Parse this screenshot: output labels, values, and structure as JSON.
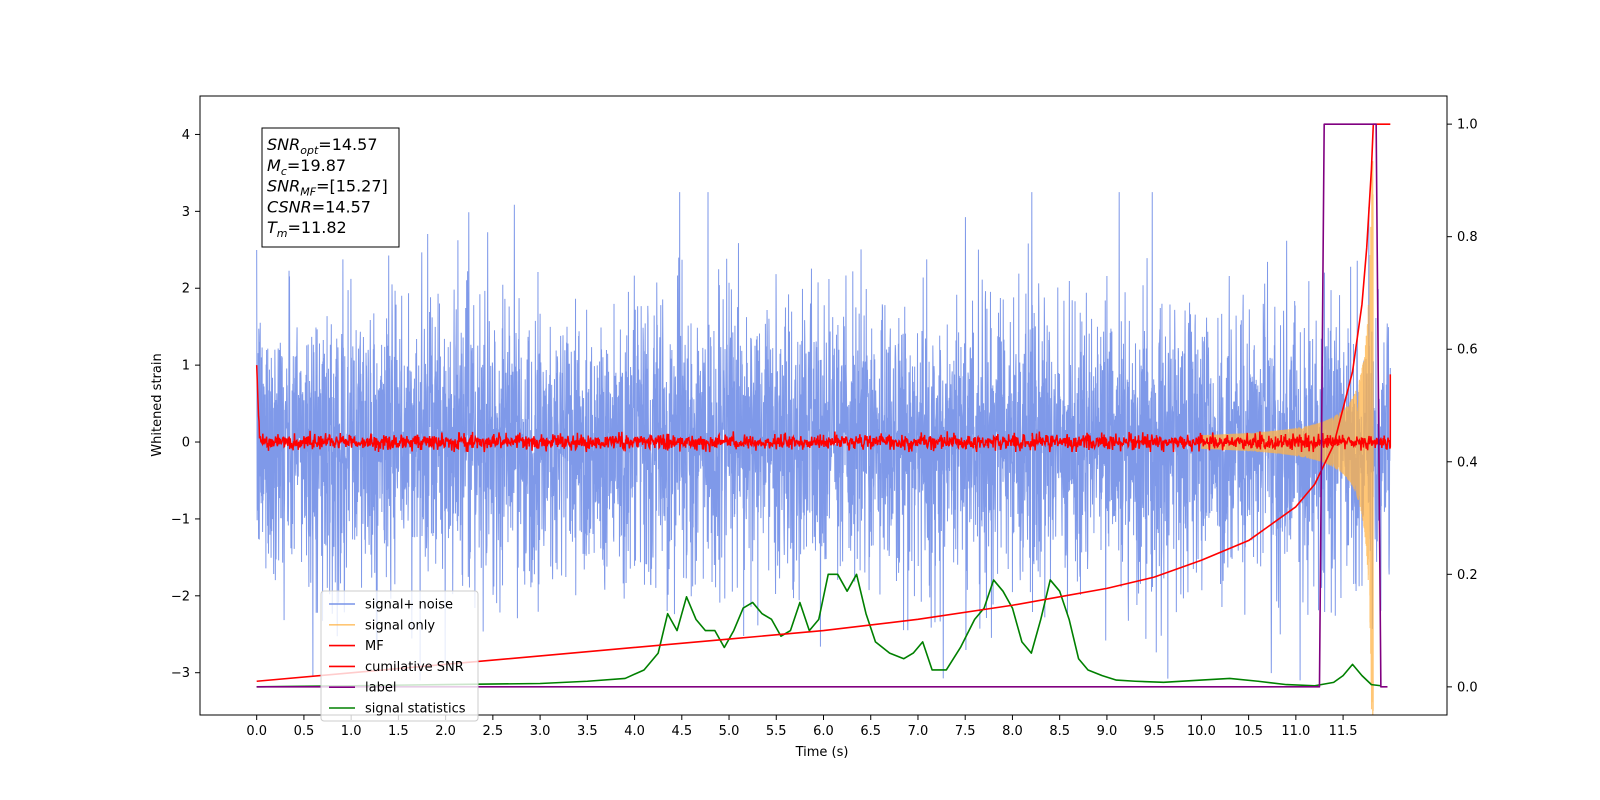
{
  "chart_data": {
    "type": "line",
    "title": "",
    "xlabel": "Time (s)",
    "ylabel": "Whitened strain",
    "xlim": [
      -0.6,
      12.6
    ],
    "ylim": [
      -3.55,
      4.5
    ],
    "y2lim": [
      -0.05,
      1.05
    ],
    "xticks": [
      0.0,
      0.5,
      1.0,
      1.5,
      2.0,
      2.5,
      3.0,
      3.5,
      4.0,
      4.5,
      5.0,
      5.5,
      6.0,
      6.5,
      7.0,
      7.5,
      8.0,
      8.5,
      9.0,
      9.5,
      10.0,
      10.5,
      11.0,
      11.5
    ],
    "xtick_labels": [
      "0.0",
      "0.5",
      "1.0",
      "1.5",
      "2.0",
      "2.5",
      "3.0",
      "3.5",
      "4.0",
      "4.5",
      "5.0",
      "5.5",
      "6.0",
      "6.5",
      "7.0",
      "7.5",
      "8.0",
      "8.5",
      "9.0",
      "9.5",
      "10.0",
      "10.5",
      "11.0",
      "11.5"
    ],
    "yticks": [
      -3,
      -2,
      -1,
      0,
      1,
      2,
      3,
      4
    ],
    "ytick_labels": [
      "−3",
      "−2",
      "−1",
      "0",
      "1",
      "2",
      "3",
      "4"
    ],
    "y2ticks": [
      0.0,
      0.2,
      0.4,
      0.6,
      0.8,
      1.0
    ],
    "y2tick_labels": [
      "0.0",
      "0.2",
      "0.4",
      "0.6",
      "0.8",
      "1.0"
    ],
    "grid": false,
    "legend_position": "lower-left",
    "annotation": {
      "lines": [
        {
          "base": "SNR",
          "sub": "opt",
          "value": "=14.57"
        },
        {
          "base": "M",
          "sub": "c",
          "value": "=19.87"
        },
        {
          "base": "SNR",
          "sub": "MF",
          "value": "=[15.27]"
        },
        {
          "base": "CSNR",
          "sub": "",
          "value": "=14.57"
        },
        {
          "base": "T",
          "sub": "m",
          "value": "=11.82"
        }
      ]
    },
    "series": [
      {
        "name": "signal+ noise",
        "color": "#7894e8",
        "axis": "left",
        "kind": "noise",
        "t_start": 0.0,
        "t_end": 12.0,
        "sigma": 0.9
      },
      {
        "name": "signal only",
        "color": "#ffb347",
        "axis": "left",
        "kind": "chirp",
        "t_start": 10.0,
        "t_end": 11.82,
        "peak_amplitude": 3.7
      },
      {
        "name": "MF",
        "color": "#ff0000",
        "axis": "left",
        "kind": "matched-filter",
        "t_start": 0.0,
        "t_end": 12.0,
        "start_value": 1.0,
        "end_value": 0.88
      },
      {
        "name": "cumilative SNR",
        "color": "#ff0000",
        "axis": "right",
        "x": [
          0.0,
          1.0,
          2.0,
          3.0,
          4.0,
          5.0,
          6.0,
          7.0,
          8.0,
          8.5,
          9.0,
          9.5,
          10.0,
          10.5,
          11.0,
          11.2,
          11.4,
          11.6,
          11.7,
          11.75,
          11.8,
          11.82,
          12.0
        ],
        "y": [
          0.01,
          0.025,
          0.04,
          0.055,
          0.07,
          0.085,
          0.1,
          0.12,
          0.145,
          0.16,
          0.175,
          0.195,
          0.225,
          0.26,
          0.32,
          0.36,
          0.43,
          0.56,
          0.68,
          0.78,
          0.92,
          1.0,
          1.0
        ]
      },
      {
        "name": "label",
        "color": "#800080",
        "axis": "right",
        "x": [
          0.0,
          11.25,
          11.3,
          11.85,
          11.9,
          11.97
        ],
        "y": [
          0.0,
          0.0,
          1.0,
          1.0,
          0.0,
          0.0
        ]
      },
      {
        "name": "signal statistics",
        "color": "#008000",
        "axis": "right",
        "x": [
          0.0,
          1.0,
          2.0,
          3.0,
          3.5,
          3.9,
          4.1,
          4.25,
          4.35,
          4.45,
          4.55,
          4.65,
          4.75,
          4.85,
          4.95,
          5.05,
          5.15,
          5.25,
          5.35,
          5.45,
          5.55,
          5.65,
          5.75,
          5.85,
          5.95,
          6.05,
          6.15,
          6.25,
          6.35,
          6.45,
          6.55,
          6.7,
          6.85,
          6.95,
          7.05,
          7.15,
          7.3,
          7.45,
          7.6,
          7.7,
          7.8,
          7.9,
          8.0,
          8.1,
          8.2,
          8.3,
          8.4,
          8.5,
          8.6,
          8.7,
          8.8,
          8.95,
          9.1,
          9.3,
          9.6,
          10.0,
          10.3,
          10.6,
          10.9,
          11.2,
          11.4,
          11.5,
          11.6,
          11.7,
          11.8,
          11.9
        ],
        "y": [
          0.0,
          0.002,
          0.004,
          0.006,
          0.01,
          0.015,
          0.03,
          0.06,
          0.13,
          0.1,
          0.16,
          0.12,
          0.1,
          0.1,
          0.07,
          0.1,
          0.14,
          0.15,
          0.13,
          0.12,
          0.09,
          0.1,
          0.15,
          0.1,
          0.12,
          0.2,
          0.2,
          0.17,
          0.2,
          0.13,
          0.08,
          0.06,
          0.05,
          0.06,
          0.08,
          0.03,
          0.03,
          0.07,
          0.12,
          0.14,
          0.19,
          0.17,
          0.14,
          0.08,
          0.06,
          0.12,
          0.19,
          0.17,
          0.12,
          0.05,
          0.03,
          0.02,
          0.012,
          0.01,
          0.008,
          0.012,
          0.015,
          0.01,
          0.004,
          0.002,
          0.008,
          0.02,
          0.04,
          0.02,
          0.004,
          0.002
        ]
      }
    ]
  }
}
